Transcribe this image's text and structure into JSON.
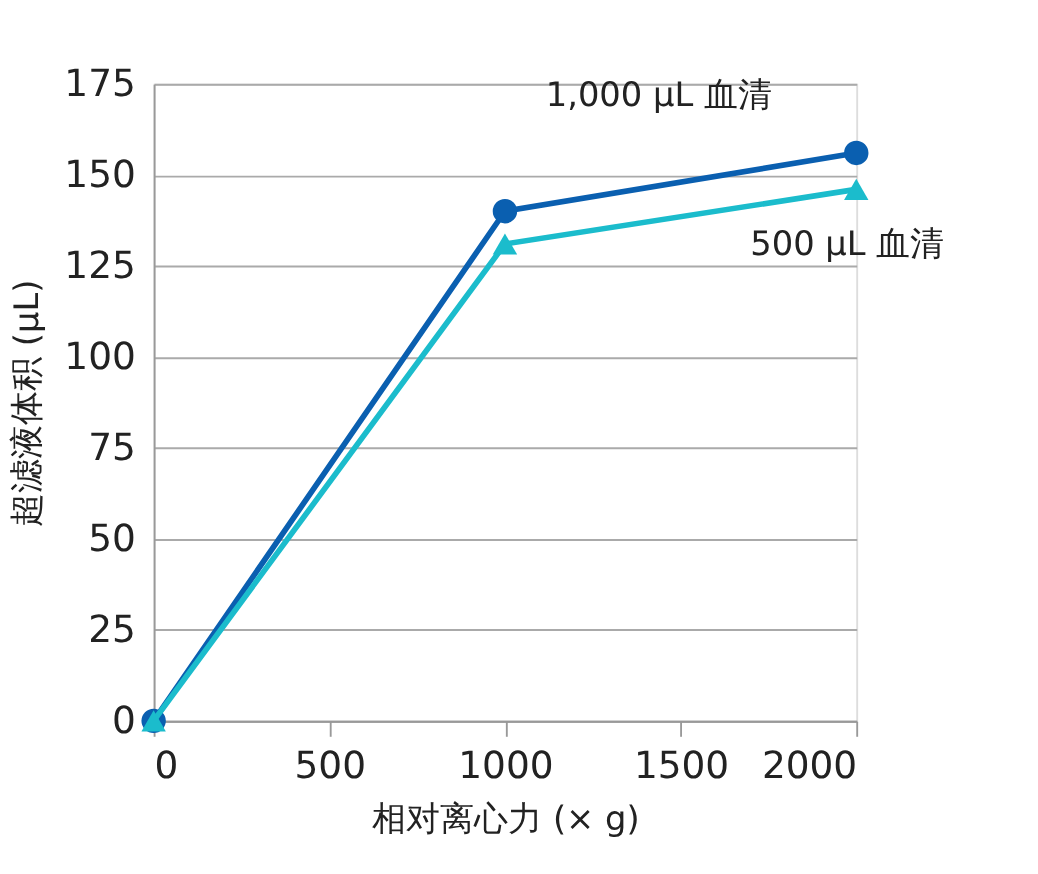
{
  "chart_data": {
    "type": "line",
    "xlabel": "相对离心力 (× g)",
    "ylabel": "超滤液体积 (μL)",
    "x": [
      0,
      1000,
      2000
    ],
    "series": [
      {
        "name": "1,000 μL 血清",
        "color": "#0a5fb0",
        "marker": "circle",
        "values": [
          0,
          140,
          156
        ]
      },
      {
        "name": "500 μL 血清",
        "color": "#1bbccc",
        "marker": "triangle",
        "values": [
          0,
          131,
          146
        ]
      }
    ],
    "xlim": [
      0,
      2000
    ],
    "xticks": [
      0,
      500,
      1000,
      1500,
      2000
    ],
    "ylim": [
      0,
      175
    ],
    "yticks": [
      0,
      25,
      50,
      75,
      100,
      125,
      150,
      175
    ],
    "grid": "y",
    "line_style": "solid"
  }
}
